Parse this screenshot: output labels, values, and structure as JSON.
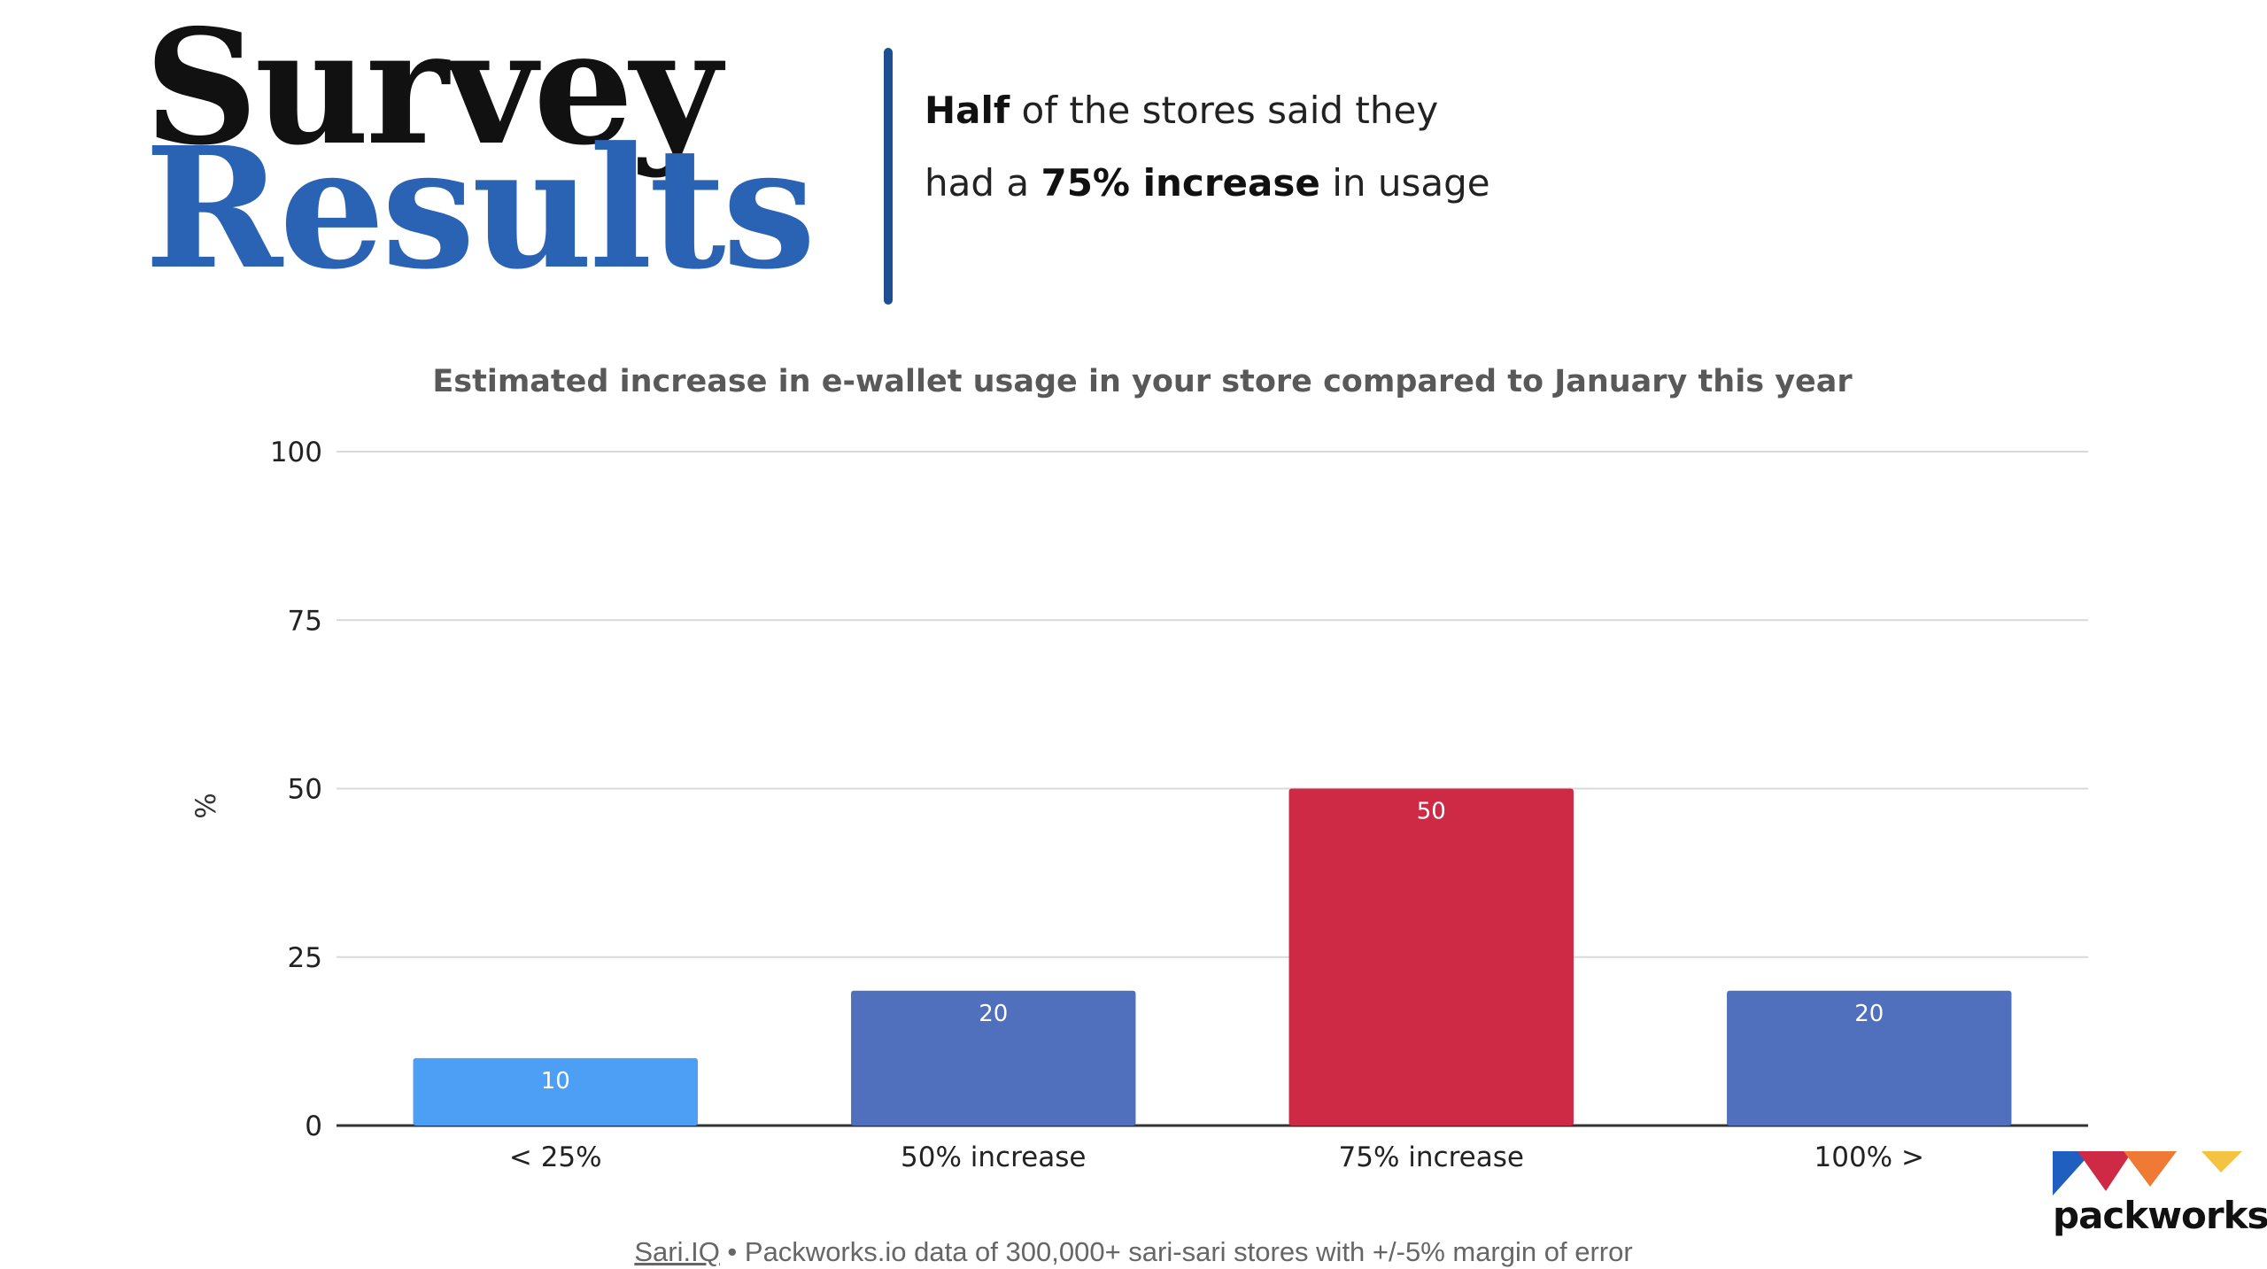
{
  "header": {
    "title_line1": "Survey",
    "title_line2": "Results",
    "headline": {
      "line1_bold": "Half",
      "line1_rest": " of the stores said they",
      "line2_pre": "had a ",
      "line2_bold": "75% increase",
      "line2_post": " in usage"
    }
  },
  "colors": {
    "title_blue": "#2a63b4",
    "divider": "#1e4f93",
    "bar_light_blue": "#4c9ff5",
    "bar_blue": "#5070bd",
    "bar_red": "#cf2a45"
  },
  "chart_data": {
    "type": "bar",
    "title": "Estimated  increase in e-wallet usage in your store compared to January this year",
    "xlabel": "",
    "ylabel": "%",
    "categories": [
      "< 25%",
      "50% increase",
      "75% increase",
      "100% >"
    ],
    "values": [
      10,
      20,
      50,
      20
    ],
    "bar_colors": [
      "#4c9ff5",
      "#5070bd",
      "#cf2a45",
      "#5070bd"
    ],
    "ylim": [
      0,
      100
    ],
    "yticks": [
      0,
      25,
      50,
      75,
      100
    ],
    "grid": true,
    "legend": "none",
    "data_labels": true
  },
  "footer": {
    "source_link": "Sari.IQ",
    "source_text": " • Packworks.io data of 300,000+ sari-sari stores with +/-5% margin of error"
  },
  "logo": {
    "name": "packworks",
    "colors": [
      "#1f5fc0",
      "#cf2a45",
      "#ee7a35",
      "#f4c342"
    ]
  }
}
